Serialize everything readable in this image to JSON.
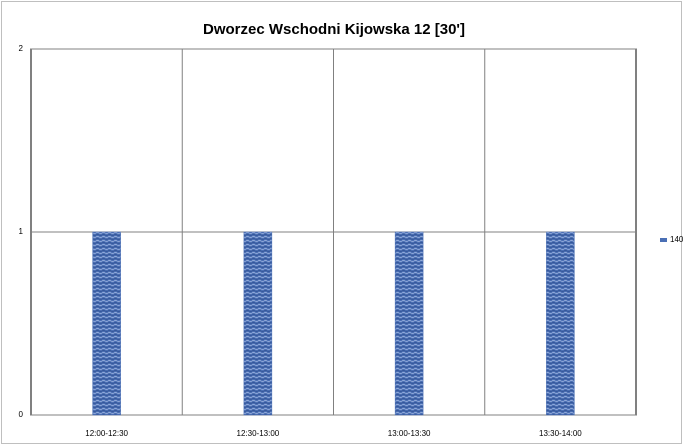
{
  "chart_data": {
    "type": "bar",
    "title": "Dworzec Wschodni Kijowska 12 [30']",
    "categories": [
      "12:00-12:30",
      "12:30-13:00",
      "13:00-13:30",
      "13:30-14:00"
    ],
    "series": [
      {
        "name": "140",
        "color": "#4a6fb5",
        "values": [
          1,
          1,
          1,
          1
        ]
      }
    ],
    "ylim": [
      0,
      2
    ],
    "yticks": [
      0,
      1,
      2
    ],
    "grid": true,
    "legend": "right"
  }
}
